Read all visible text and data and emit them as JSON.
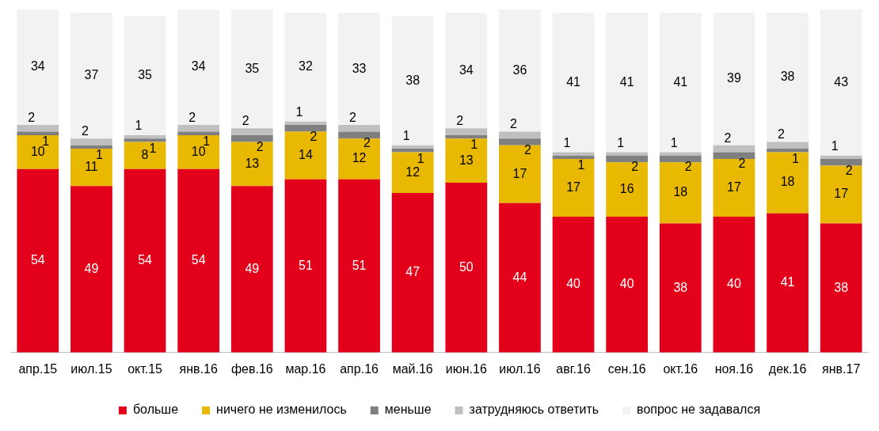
{
  "chart_data": {
    "type": "bar",
    "stacked": true,
    "data_labels": true,
    "legend": "bottom",
    "grid": false,
    "tick_labels": "x",
    "categories": [
      "апр.15",
      "июл.15",
      "окт.15",
      "янв.16",
      "фев.16",
      "мар.16",
      "апр.16",
      "май.16",
      "июн.16",
      "июл.16",
      "авг.16",
      "сен.16",
      "окт.16",
      "ноя.16",
      "дек.16",
      "янв.17"
    ],
    "series": [
      {
        "name": "больше",
        "color": "#e2001a",
        "values": [
          54,
          49,
          54,
          54,
          49,
          51,
          51,
          47,
          50,
          44,
          40,
          40,
          38,
          40,
          41,
          38
        ]
      },
      {
        "name": "ничего не изменилось",
        "color": "#e9b800",
        "values": [
          10,
          11,
          8,
          10,
          13,
          14,
          12,
          12,
          13,
          17,
          17,
          16,
          18,
          17,
          18,
          17
        ]
      },
      {
        "name": "меньше",
        "color": "#7f7f7f",
        "values": [
          1,
          1,
          1,
          1,
          2,
          2,
          2,
          1,
          1,
          2,
          1,
          2,
          2,
          2,
          1,
          2
        ]
      },
      {
        "name": "затрудняюсь ответить",
        "color": "#bfbfbf",
        "values": [
          2,
          2,
          1,
          2,
          2,
          1,
          2,
          1,
          2,
          2,
          1,
          1,
          1,
          2,
          2,
          1
        ]
      },
      {
        "name": "вопрос не задавался",
        "color": "#f2f2f2",
        "values": [
          34,
          37,
          35,
          34,
          35,
          32,
          33,
          38,
          34,
          36,
          41,
          41,
          41,
          39,
          38,
          43
        ]
      }
    ]
  }
}
